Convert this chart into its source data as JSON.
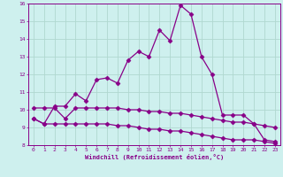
{
  "xlabel": "Windchill (Refroidissement éolien,°C)",
  "background_color": "#cef0ee",
  "grid_color": "#b0d8d0",
  "line_color": "#880088",
  "xlim": [
    -0.5,
    23.5
  ],
  "ylim": [
    8,
    16
  ],
  "yticks": [
    8,
    9,
    10,
    11,
    12,
    13,
    14,
    15,
    16
  ],
  "xticks": [
    0,
    1,
    2,
    3,
    4,
    5,
    6,
    7,
    8,
    9,
    10,
    11,
    12,
    13,
    14,
    15,
    16,
    17,
    18,
    19,
    20,
    21,
    22,
    23
  ],
  "series1_x": [
    0,
    1,
    2,
    3,
    4,
    5,
    6,
    7,
    8,
    9,
    10,
    11,
    12,
    13,
    14,
    15,
    16,
    17,
    18,
    19,
    20,
    21,
    22,
    23
  ],
  "series1_y": [
    9.5,
    9.2,
    10.2,
    10.2,
    10.9,
    10.5,
    11.7,
    11.8,
    11.5,
    12.8,
    13.3,
    13.0,
    14.5,
    13.9,
    15.9,
    15.4,
    13.0,
    12.0,
    9.7,
    9.7,
    9.7,
    9.2,
    8.3,
    8.2
  ],
  "series2_x": [
    0,
    1,
    2,
    3,
    4,
    5,
    6,
    7,
    8,
    9,
    10,
    11,
    12,
    13,
    14,
    15,
    16,
    17,
    18,
    19,
    20,
    21,
    22,
    23
  ],
  "series2_y": [
    10.1,
    10.1,
    10.1,
    9.5,
    10.1,
    10.1,
    10.1,
    10.1,
    10.1,
    10.0,
    10.0,
    9.9,
    9.9,
    9.8,
    9.8,
    9.7,
    9.6,
    9.5,
    9.4,
    9.3,
    9.3,
    9.2,
    9.1,
    9.0
  ],
  "series3_x": [
    0,
    1,
    2,
    3,
    4,
    5,
    6,
    7,
    8,
    9,
    10,
    11,
    12,
    13,
    14,
    15,
    16,
    17,
    18,
    19,
    20,
    21,
    22,
    23
  ],
  "series3_y": [
    9.5,
    9.2,
    9.2,
    9.2,
    9.2,
    9.2,
    9.2,
    9.2,
    9.1,
    9.1,
    9.0,
    8.9,
    8.9,
    8.8,
    8.8,
    8.7,
    8.6,
    8.5,
    8.4,
    8.3,
    8.3,
    8.3,
    8.2,
    8.1
  ]
}
